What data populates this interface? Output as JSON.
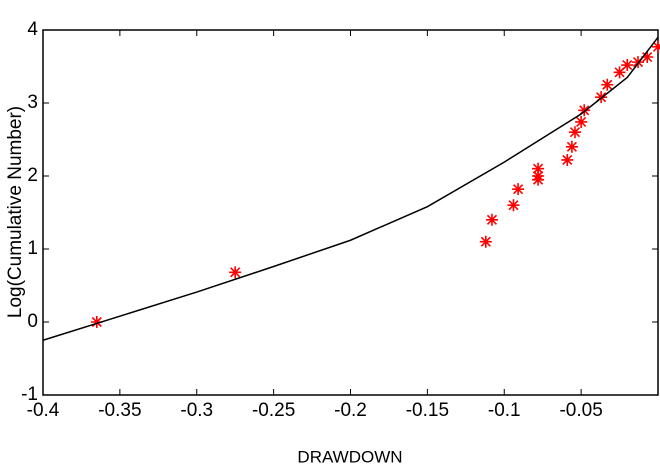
{
  "chart_data": {
    "type": "scatter",
    "xlabel": "DRAWDOWN",
    "ylabel": "Log(Cumulative Number)",
    "xlim": [
      -0.4,
      0
    ],
    "ylim": [
      -1,
      4
    ],
    "xticks": [
      -0.4,
      -0.35,
      -0.3,
      -0.25,
      -0.2,
      -0.15,
      -0.1,
      -0.05
    ],
    "yticks": [
      -1,
      0,
      1,
      2,
      3,
      4
    ],
    "series": [
      {
        "type": "scatter",
        "color": "#ff0000",
        "x": [
          -0.365,
          -0.275,
          -0.112,
          -0.108,
          -0.094,
          -0.091,
          -0.078,
          -0.078,
          -0.078,
          -0.059,
          -0.056,
          -0.054,
          -0.05,
          -0.048,
          -0.037,
          -0.033,
          -0.025,
          -0.02,
          -0.013,
          -0.007,
          0
        ],
        "values": [
          0.0,
          0.68,
          1.1,
          1.4,
          1.6,
          1.82,
          1.95,
          2.0,
          2.1,
          2.22,
          2.4,
          2.6,
          2.74,
          2.9,
          3.08,
          3.25,
          3.42,
          3.52,
          3.56,
          3.63,
          3.77
        ]
      },
      {
        "type": "line",
        "color": "#000000",
        "x": [
          -0.4,
          -0.35,
          -0.3,
          -0.25,
          -0.2,
          -0.15,
          -0.1,
          -0.05,
          -0.02,
          0
        ],
        "values": [
          -0.25,
          0.08,
          0.41,
          0.76,
          1.12,
          1.58,
          2.19,
          2.85,
          3.35,
          3.9
        ]
      }
    ]
  }
}
